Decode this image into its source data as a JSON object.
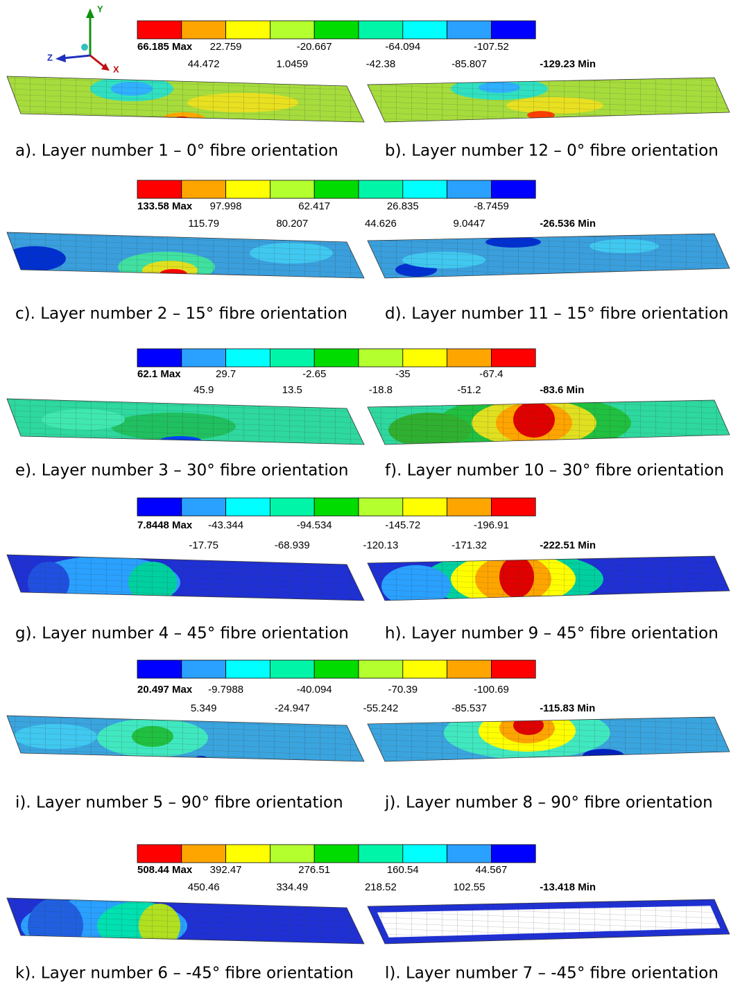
{
  "triad": {
    "y": "Y",
    "z": "Z",
    "x": "X"
  },
  "panels": [
    {
      "legend": {
        "colors": [
          "#ff0000",
          "#ffa500",
          "#ffff00",
          "#b4ff2e",
          "#00dc00",
          "#00f5a8",
          "#00ffff",
          "#2aa0ff",
          "#0000ff"
        ],
        "top": [
          "66.185 Max",
          "22.759",
          "-20.667",
          "-64.094",
          "-107.52"
        ],
        "bottom": [
          "44.472",
          "1.0459",
          "-42.38",
          "-85.807",
          "-129.23 Min"
        ]
      },
      "captions": [
        "a). Layer number 1 – 0° fibre orientation",
        "b). Layer number 12 – 0° fibre orientation"
      ]
    },
    {
      "legend": {
        "colors": [
          "#ff0000",
          "#ffa500",
          "#ffff00",
          "#b4ff2e",
          "#00dc00",
          "#00f5a8",
          "#00ffff",
          "#2aa0ff",
          "#0000ff"
        ],
        "top": [
          "133.58 Max",
          "97.998",
          "62.417",
          "26.835",
          "-8.7459"
        ],
        "bottom": [
          "115.79",
          "80.207",
          "44.626",
          "9.0447",
          "-26.536 Min"
        ]
      },
      "captions": [
        "c). Layer number 2 – 15° fibre orientation",
        "d). Layer number 11 – 15° fibre orientation"
      ]
    },
    {
      "legend": {
        "colors": [
          "#0000ff",
          "#2aa0ff",
          "#00ffff",
          "#00f5a8",
          "#00dc00",
          "#b4ff2e",
          "#ffff00",
          "#ffa500",
          "#ff0000"
        ],
        "top": [
          "62.1 Max",
          "29.7",
          "-2.65",
          "-35",
          "-67.4"
        ],
        "bottom": [
          "45.9",
          "13.5",
          "-18.8",
          "-51.2",
          "-83.6 Min"
        ]
      },
      "captions": [
        "e). Layer number 3 – 30° fibre orientation",
        "f). Layer number 10 – 30° fibre orientation"
      ]
    },
    {
      "legend": {
        "colors": [
          "#0000ff",
          "#2aa0ff",
          "#00ffff",
          "#00f5a8",
          "#00dc00",
          "#b4ff2e",
          "#ffff00",
          "#ffa500",
          "#ff0000"
        ],
        "top": [
          "7.8448 Max",
          "-43.344",
          "-94.534",
          "-145.72",
          "-196.91"
        ],
        "bottom": [
          "-17.75",
          "-68.939",
          "-120.13",
          "-171.32",
          "-222.51 Min"
        ]
      },
      "captions": [
        "g). Layer number 4 – 45° fibre orientation",
        "h). Layer number 9 – 45° fibre orientation"
      ]
    },
    {
      "legend": {
        "colors": [
          "#0000ff",
          "#2aa0ff",
          "#00ffff",
          "#00f5a8",
          "#00dc00",
          "#b4ff2e",
          "#ffff00",
          "#ffa500",
          "#ff0000"
        ],
        "top": [
          "20.497 Max",
          "-9.7988",
          "-40.094",
          "-70.39",
          "-100.69"
        ],
        "bottom": [
          "5.349",
          "-24.947",
          "-55.242",
          "-85.537",
          "-115.83 Min"
        ]
      },
      "captions": [
        "i). Layer number 5 – 90° fibre orientation",
        "j). Layer number 8 – 90° fibre orientation"
      ]
    },
    {
      "legend": {
        "colors": [
          "#ff0000",
          "#ffa500",
          "#ffff00",
          "#b4ff2e",
          "#00dc00",
          "#00f5a8",
          "#00ffff",
          "#2aa0ff",
          "#0000ff"
        ],
        "top": [
          "508.44 Max",
          "392.47",
          "276.51",
          "160.54",
          "44.567"
        ],
        "bottom": [
          "450.46",
          "334.49",
          "218.52",
          "102.55",
          "-13.418 Min"
        ]
      },
      "captions": [
        "k). Layer number 6 – -45° fibre orientation",
        "l). Layer number 7 – -45° fibre orientation"
      ]
    }
  ]
}
